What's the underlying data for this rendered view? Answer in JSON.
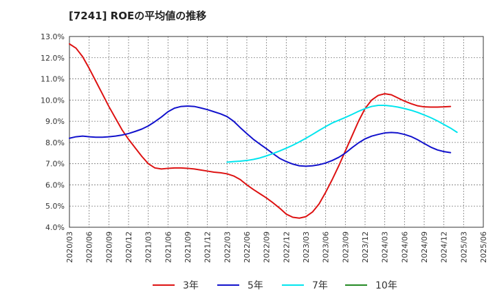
{
  "chart_data": {
    "type": "line",
    "title": "[7241]  ROEの平均値の推移",
    "xlabel": "",
    "ylabel": "",
    "ylim": [
      4.0,
      13.0
    ],
    "y_ticks": [
      "4.0%",
      "5.0%",
      "6.0%",
      "7.0%",
      "8.0%",
      "9.0%",
      "10.0%",
      "11.0%",
      "12.0%",
      "13.0%"
    ],
    "x_ticks": [
      "2020/03",
      "2020/06",
      "2020/09",
      "2020/12",
      "2021/03",
      "2021/06",
      "2021/09",
      "2021/12",
      "2022/03",
      "2022/06",
      "2022/09",
      "2022/12",
      "2023/03",
      "2023/06",
      "2023/09",
      "2023/12",
      "2024/03",
      "2024/06",
      "2024/09",
      "2024/12",
      "2025/03",
      "2025/06"
    ],
    "grid": true,
    "legend_position": "bottom",
    "series": [
      {
        "name": "3年",
        "color": "#dd1111",
        "start_index": 0,
        "values": [
          12.65,
          12.45,
          12.05,
          11.5,
          10.9,
          10.3,
          9.7,
          9.15,
          8.6,
          8.15,
          7.75,
          7.35,
          7.0,
          6.8,
          6.75,
          6.78,
          6.8,
          6.8,
          6.78,
          6.75,
          6.7,
          6.65,
          6.6,
          6.57,
          6.52,
          6.42,
          6.25,
          6.0,
          5.78,
          5.58,
          5.38,
          5.15,
          4.9,
          4.62,
          4.47,
          4.43,
          4.5,
          4.72,
          5.1,
          5.65,
          6.25,
          6.9,
          7.6,
          8.3,
          9.0,
          9.6,
          10.0,
          10.22,
          10.3,
          10.25,
          10.1,
          9.95,
          9.83,
          9.73,
          9.68,
          9.67,
          9.67,
          9.68,
          9.7
        ]
      },
      {
        "name": "5年",
        "color": "#1111cc",
        "start_index": 0,
        "values": [
          8.2,
          8.27,
          8.3,
          8.27,
          8.25,
          8.25,
          8.27,
          8.3,
          8.35,
          8.42,
          8.52,
          8.63,
          8.78,
          8.98,
          9.2,
          9.45,
          9.62,
          9.7,
          9.72,
          9.7,
          9.63,
          9.55,
          9.45,
          9.35,
          9.22,
          9.0,
          8.7,
          8.42,
          8.15,
          7.92,
          7.7,
          7.47,
          7.25,
          7.1,
          6.98,
          6.9,
          6.88,
          6.9,
          6.95,
          7.03,
          7.15,
          7.3,
          7.5,
          7.75,
          7.98,
          8.17,
          8.3,
          8.38,
          8.45,
          8.47,
          8.45,
          8.38,
          8.28,
          8.13,
          7.95,
          7.78,
          7.65,
          7.57,
          7.52
        ]
      },
      {
        "name": "7年",
        "color": "#00e5ee",
        "start_index": 24,
        "values": [
          7.07,
          7.1,
          7.12,
          7.15,
          7.2,
          7.27,
          7.37,
          7.48,
          7.6,
          7.73,
          7.87,
          8.03,
          8.2,
          8.38,
          8.57,
          8.75,
          8.92,
          9.05,
          9.18,
          9.32,
          9.47,
          9.6,
          9.7,
          9.75,
          9.75,
          9.72,
          9.67,
          9.6,
          9.52,
          9.42,
          9.3,
          9.17,
          9.02,
          8.85,
          8.68,
          8.48
        ]
      },
      {
        "name": "10年",
        "color": "#228822",
        "start_index": 0,
        "values": []
      }
    ]
  }
}
